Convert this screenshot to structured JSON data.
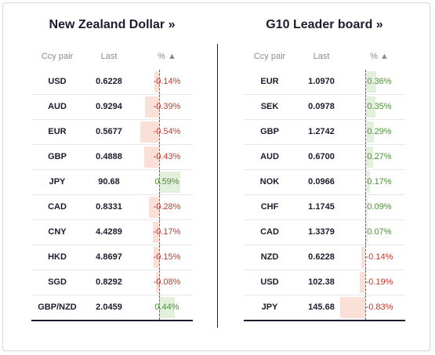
{
  "panels": {
    "nzd": {
      "title": "New Zealand Dollar »",
      "headers": {
        "pair": "Ccy pair",
        "last": "Last",
        "pct": "% ▲"
      },
      "rows": [
        {
          "pair": "USD",
          "last": "0.6228",
          "pct": "-0.14%",
          "value": -0.14
        },
        {
          "pair": "AUD",
          "last": "0.9294",
          "pct": "-0.39%",
          "value": -0.39
        },
        {
          "pair": "EUR",
          "last": "0.5677",
          "pct": "-0.54%",
          "value": -0.54
        },
        {
          "pair": "GBP",
          "last": "0.4888",
          "pct": "-0.43%",
          "value": -0.43
        },
        {
          "pair": "JPY",
          "last": "90.68",
          "pct": "0.59%",
          "value": 0.59
        },
        {
          "pair": "CAD",
          "last": "0.8331",
          "pct": "-0.28%",
          "value": -0.28
        },
        {
          "pair": "CNY",
          "last": "4.4289",
          "pct": "-0.17%",
          "value": -0.17
        },
        {
          "pair": "HKD",
          "last": "4.8697",
          "pct": "-0.15%",
          "value": -0.15
        },
        {
          "pair": "SGD",
          "last": "0.8292",
          "pct": "-0.08%",
          "value": -0.08
        },
        {
          "pair": "GBP/NZD",
          "last": "2.0459",
          "pct": "0.44%",
          "value": 0.44
        }
      ]
    },
    "g10": {
      "title": "G10 Leader board »",
      "headers": {
        "pair": "Ccy pair",
        "last": "Last",
        "pct": "% ▲"
      },
      "rows": [
        {
          "pair": "EUR",
          "last": "1.0970",
          "pct": "0.36%",
          "value": 0.36
        },
        {
          "pair": "SEK",
          "last": "0.0978",
          "pct": "0.35%",
          "value": 0.35
        },
        {
          "pair": "GBP",
          "last": "1.2742",
          "pct": "0.29%",
          "value": 0.29
        },
        {
          "pair": "AUD",
          "last": "0.6700",
          "pct": "0.27%",
          "value": 0.27
        },
        {
          "pair": "NOK",
          "last": "0.0966",
          "pct": "0.17%",
          "value": 0.17
        },
        {
          "pair": "CHF",
          "last": "1.1745",
          "pct": "0.09%",
          "value": 0.09
        },
        {
          "pair": "CAD",
          "last": "1.3379",
          "pct": "0.07%",
          "value": 0.07
        },
        {
          "pair": "NZD",
          "last": "0.6228",
          "pct": "-0.14%",
          "value": -0.14
        },
        {
          "pair": "USD",
          "last": "102.38",
          "pct": "-0.19%",
          "value": -0.19
        },
        {
          "pair": "JPY",
          "last": "145.68",
          "pct": "-0.83%",
          "value": -0.83
        }
      ]
    }
  },
  "colors": {
    "positive_text": "#4e8f3a",
    "negative_text": "#c0392b",
    "positive_bar": "#e2f0dc",
    "negative_bar": "#fbe0d8"
  }
}
